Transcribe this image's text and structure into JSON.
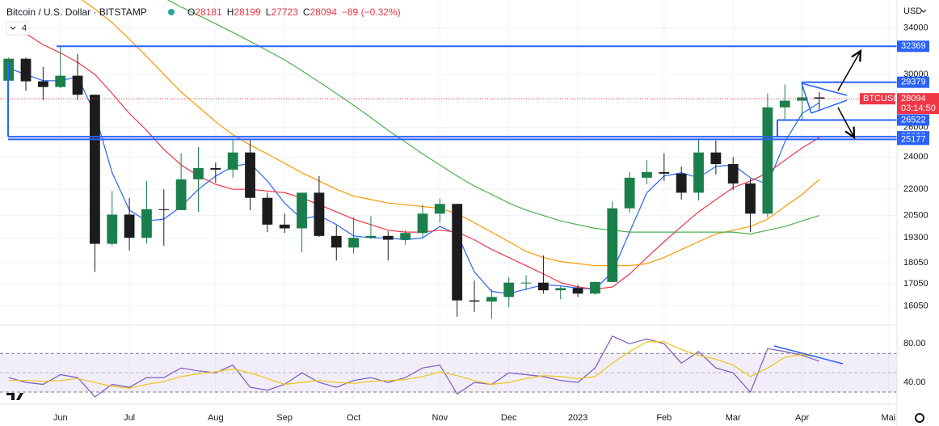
{
  "header": {
    "title": "Bitcoin / U.S. Dollar · BITSTAMP",
    "ohlc": [
      {
        "key": "O",
        "value": 28181
      },
      {
        "key": "H",
        "value": 28199
      },
      {
        "key": "L",
        "value": 27723
      },
      {
        "key": "C",
        "value": 28094
      }
    ],
    "change": "−89 (−0.32%)",
    "indicator_count": "4",
    "currency": "USD"
  },
  "chart_data": [
    {
      "type": "candlestick",
      "categories": [
        null,
        null,
        null,
        "Jun",
        null,
        null,
        null,
        "Jul",
        null,
        null,
        null,
        null,
        "Aug",
        null,
        null,
        null,
        "Sep",
        null,
        null,
        null,
        "Oct",
        null,
        null,
        null,
        null,
        "Nov",
        null,
        null,
        null,
        "Dec",
        null,
        null,
        null,
        "2023",
        null,
        null,
        null,
        null,
        "Feb",
        null,
        null,
        null,
        "Mar",
        null,
        null,
        null,
        "Apr",
        null,
        null,
        null,
        null,
        "Mai"
      ],
      "open": [
        29500,
        31300,
        29450,
        29000,
        29900,
        28400,
        18990,
        20550,
        19300,
        20850,
        20800,
        22600,
        23300,
        23200,
        24300,
        21500,
        20000,
        19800,
        21800,
        19400,
        18800,
        19300,
        19400,
        19200,
        19550,
        20600,
        21150,
        16300,
        16250,
        16450,
        17100,
        17100,
        16750,
        16850,
        16600,
        17130,
        20900,
        22700,
        23050,
        22950,
        21800,
        24300,
        23550,
        22350,
        20600,
        27450,
        27950,
        28200,
        null,
        null,
        null,
        null
      ],
      "high": [
        31400,
        31400,
        30600,
        32369,
        31700,
        28400,
        21900,
        21500,
        22500,
        22000,
        24250,
        24650,
        23650,
        25200,
        25180,
        21800,
        20600,
        21800,
        22800,
        19950,
        20400,
        20470,
        19650,
        19700,
        21100,
        21450,
        21150,
        17200,
        16800,
        17350,
        17450,
        18400,
        16950,
        17000,
        17150,
        21300,
        23050,
        23800,
        24250,
        23400,
        25250,
        25100,
        24000,
        22650,
        28500,
        29200,
        29100,
        28600,
        null,
        null,
        null,
        null
      ],
      "low": [
        27700,
        28700,
        28000,
        28900,
        28000,
        17600,
        18900,
        18650,
        19000,
        18900,
        20800,
        20700,
        22400,
        22700,
        20800,
        19600,
        19550,
        18550,
        19350,
        18150,
        18500,
        19250,
        18150,
        18950,
        19250,
        20100,
        15600,
        15800,
        15500,
        16000,
        16750,
        16600,
        16350,
        16450,
        16550,
        17130,
        20650,
        22300,
        22500,
        21400,
        21350,
        22900,
        21950,
        19600,
        20400,
        26600,
        26550,
        27250,
        null,
        null,
        null,
        null
      ],
      "close": [
        31300,
        29450,
        29000,
        29900,
        28400,
        18990,
        20550,
        19300,
        20850,
        20800,
        22600,
        23300,
        23200,
        24300,
        21500,
        20000,
        19800,
        21800,
        19400,
        18800,
        19300,
        19400,
        19200,
        19550,
        20600,
        21150,
        16300,
        16250,
        16450,
        17100,
        17100,
        16750,
        16850,
        16600,
        17130,
        20900,
        22700,
        23050,
        22950,
        21800,
        24300,
        23550,
        22350,
        20600,
        27450,
        27950,
        28200,
        28094,
        null,
        null,
        null,
        null
      ],
      "up_color": "#1b7f4b",
      "down_color": "#1c1c1c",
      "moving_averages": [
        {
          "color": "#2962ff",
          "values": [
            30500,
            30000,
            29500,
            29500,
            29800,
            27000,
            23000,
            20800,
            20200,
            20300,
            21000,
            22000,
            22800,
            23400,
            23600,
            22500,
            21200,
            20300,
            20500,
            20000,
            19400,
            19300,
            19300,
            19200,
            19300,
            19900,
            19500,
            17600,
            16700,
            16600,
            16800,
            17000,
            16950,
            16850,
            16800,
            17600,
            19600,
            21800,
            22800,
            23000,
            22700,
            23400,
            23500,
            22700,
            22300,
            25000,
            27000,
            27800,
            null,
            null,
            null,
            null
          ]
        },
        {
          "color": "#f23645",
          "values": [
            34500,
            33500,
            32500,
            31800,
            31000,
            30000,
            28500,
            27000,
            25800,
            24500,
            23500,
            22800,
            22300,
            22000,
            22000,
            21900,
            21800,
            21500,
            21100,
            20700,
            20300,
            20000,
            19700,
            19600,
            19600,
            19700,
            19600,
            19200,
            18700,
            18300,
            17900,
            17500,
            17100,
            16900,
            16800,
            16900,
            17500,
            18300,
            19100,
            19900,
            20700,
            21400,
            22100,
            22500,
            23000,
            23800,
            24600,
            25300,
            null,
            null,
            null,
            null
          ]
        },
        {
          "color": "#ff9800",
          "values": [
            41000,
            40000,
            39000,
            38000,
            37000,
            35800,
            34500,
            33000,
            31500,
            30000,
            28600,
            27500,
            26400,
            25500,
            24800,
            24200,
            23600,
            23000,
            22500,
            22000,
            21600,
            21400,
            21200,
            21100,
            21000,
            20900,
            20600,
            20100,
            19600,
            19100,
            18600,
            18300,
            18100,
            18000,
            17900,
            17900,
            17900,
            18000,
            18300,
            18700,
            19100,
            19500,
            19700,
            19900,
            20300,
            21000,
            21700,
            22600,
            null,
            null,
            null,
            null
          ]
        },
        {
          "color": "#4caf50",
          "values": [
            48000,
            46500,
            45000,
            43800,
            42600,
            41400,
            40200,
            39000,
            37900,
            36900,
            36000,
            35200,
            34400,
            33600,
            32800,
            32000,
            31200,
            30300,
            29400,
            28500,
            27600,
            26700,
            25800,
            25000,
            24200,
            23500,
            22800,
            22200,
            21700,
            21200,
            20800,
            20500,
            20200,
            20000,
            19800,
            19700,
            19600,
            19600,
            19600,
            19600,
            19600,
            19600,
            19600,
            19500,
            19700,
            19900,
            20200,
            20500,
            null,
            null,
            null,
            null
          ]
        }
      ],
      "ylim": [
        15320,
        36680
      ],
      "log_scale": true,
      "grid": true,
      "yticks": [
        16050,
        17050,
        18050,
        19300,
        20500,
        22000,
        24000,
        26000,
        30000,
        34000
      ],
      "levels": [
        32369,
        29379,
        26522,
        25358,
        25177
      ],
      "level_color": "#2962ff",
      "price_label": {
        "symbol": "BTCUSD",
        "value": 28094,
        "countdown": "03:14:50",
        "color": "#f23645"
      }
    },
    {
      "type": "line",
      "series": [
        {
          "color": "#7e57c2",
          "values": [
            45,
            40,
            38,
            48,
            45,
            25,
            38,
            35,
            45,
            45,
            55,
            52,
            50,
            58,
            35,
            32,
            38,
            50,
            40,
            35,
            42,
            45,
            40,
            45,
            55,
            58,
            28,
            40,
            38,
            50,
            48,
            46,
            42,
            40,
            55,
            88,
            80,
            85,
            80,
            60,
            72,
            55,
            50,
            30,
            75,
            72,
            68,
            62,
            null,
            null,
            null,
            null
          ]
        },
        {
          "color": "#f0c419",
          "values": [
            42,
            42,
            41,
            42,
            44,
            40,
            36,
            34,
            38,
            41,
            46,
            49,
            51,
            54,
            50,
            44,
            38,
            40,
            42,
            40,
            39,
            41,
            42,
            43,
            46,
            51,
            47,
            42,
            38,
            40,
            44,
            47,
            46,
            44,
            46,
            60,
            72,
            82,
            82,
            74,
            68,
            64,
            58,
            46,
            55,
            66,
            69,
            66,
            null,
            null,
            null,
            null
          ]
        }
      ],
      "ylim": [
        20,
        97
      ],
      "yticks": [
        {
          "value": 40,
          "label": "40.00"
        },
        {
          "value": 80,
          "label": "80.00"
        }
      ],
      "band": [
        30,
        70
      ],
      "midline": 50
    }
  ]
}
